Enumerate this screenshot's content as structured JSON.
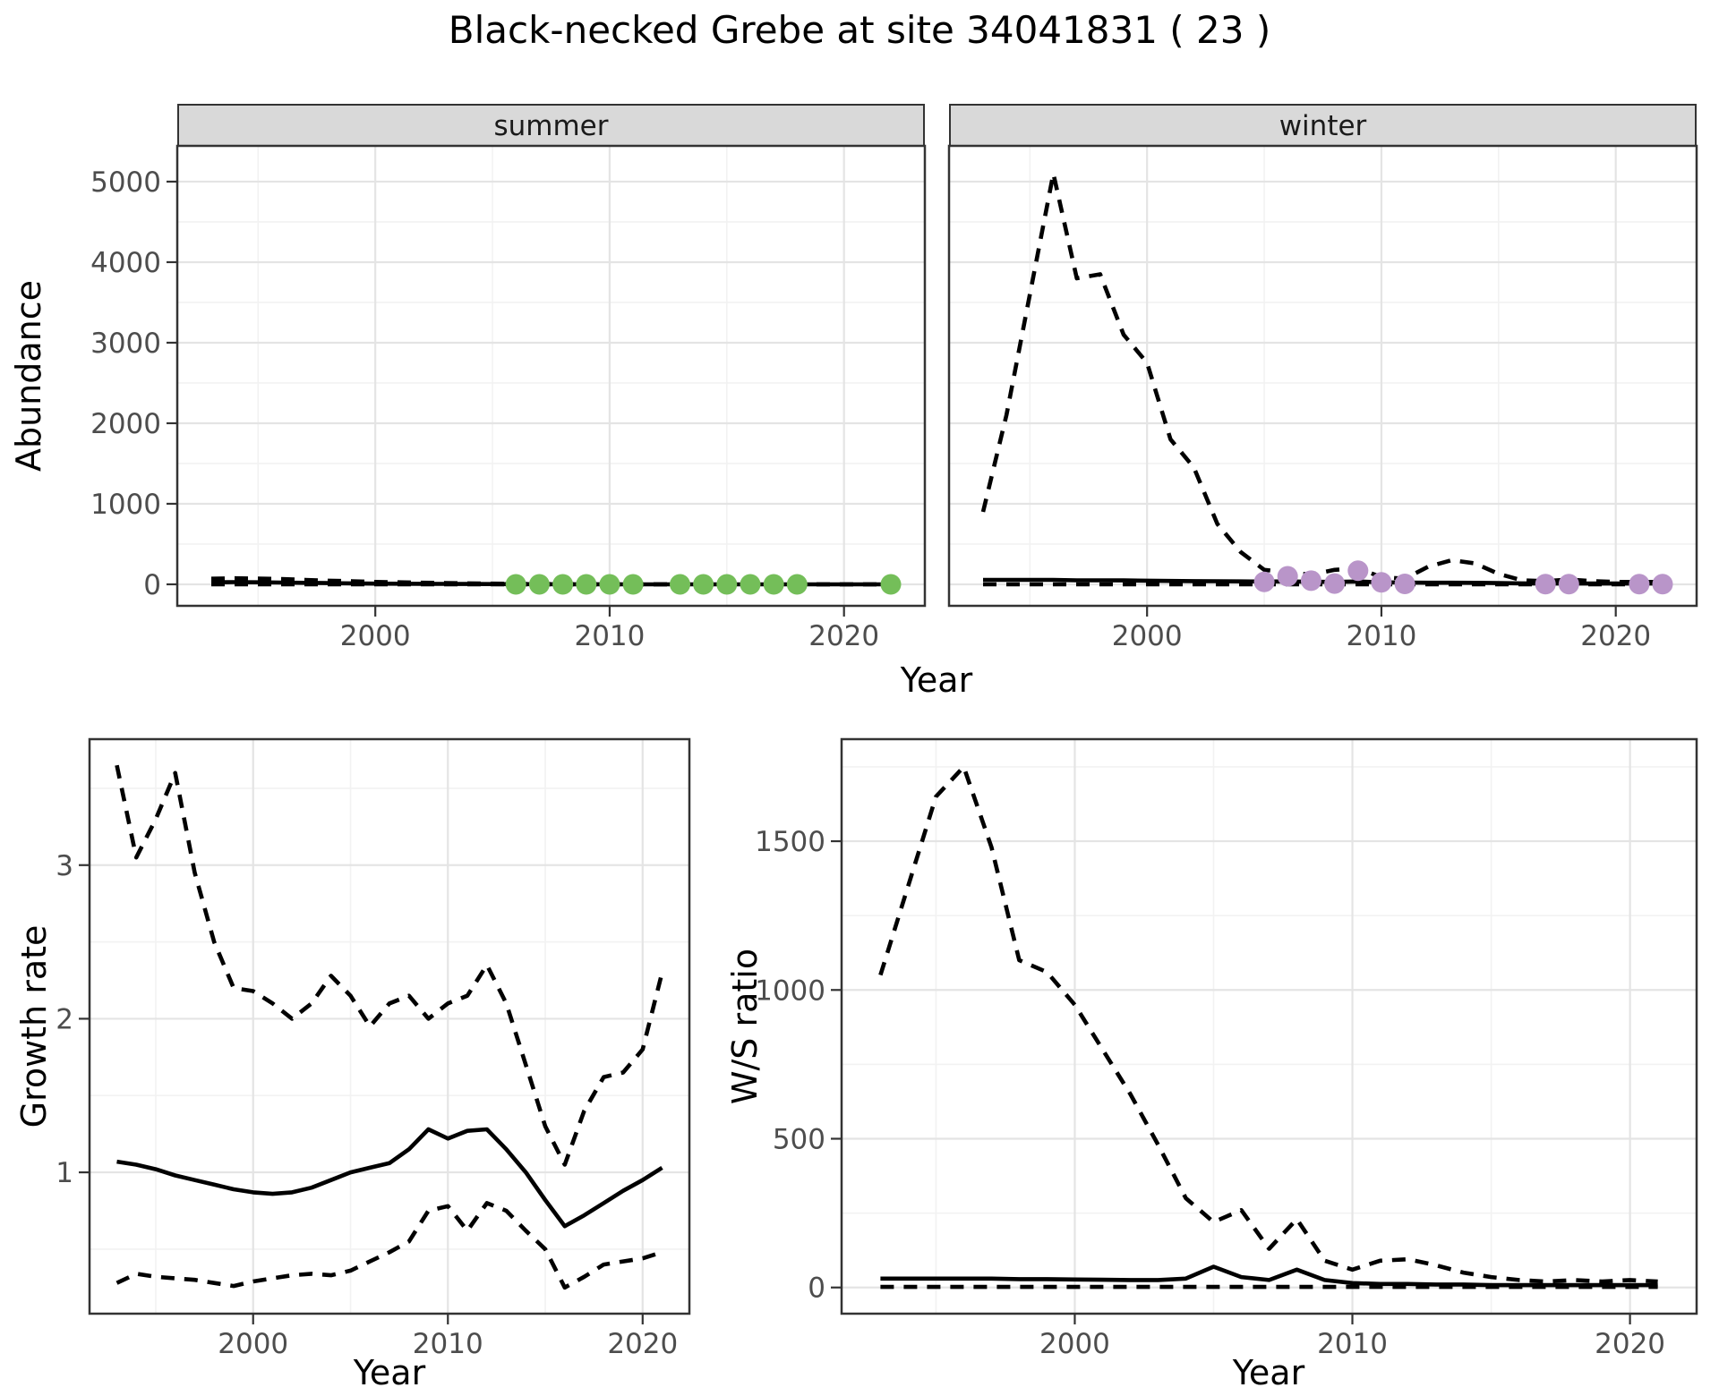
{
  "title": "Black-necked Grebe at site 34041831 ( 23 )",
  "labels": {
    "abundance": "Abundance",
    "year": "Year",
    "growth_rate": "Growth rate",
    "ws_ratio": "W/S ratio",
    "facet_summer": "summer",
    "facet_winter": "winter"
  },
  "colors": {
    "summer_points": "#74BE59",
    "winter_points": "#B995C9",
    "line": "#000000",
    "strip_bg": "#D9D9D9",
    "panel_border": "#333333",
    "grid_major": "#E4E4E4",
    "grid_minor": "#F2F2F2",
    "tick_text": "#4D4D4D"
  },
  "chart_data": [
    {
      "id": "abundance_summer",
      "type": "line",
      "facet": "summer",
      "title": "Black-necked Grebe at site 34041831 ( 23 )",
      "xlabel": "Year",
      "ylabel": "Abundance",
      "xlim": [
        1991.55,
        2023.45
      ],
      "ylim": [
        -267,
        5444
      ],
      "xticks": [
        2000,
        2010,
        2020
      ],
      "yticks": [
        0,
        1000,
        2000,
        3000,
        4000,
        5000
      ],
      "xminor": [
        1995,
        2005,
        2015
      ],
      "yminor": [
        500,
        1500,
        2500,
        3500,
        4500
      ],
      "show_y_labels": true,
      "x": [
        1993,
        1994,
        1995,
        1996,
        1997,
        1998,
        1999,
        2000,
        2001,
        2002,
        2003,
        2004,
        2005,
        2006,
        2007,
        2008,
        2009,
        2010,
        2011,
        2012,
        2013,
        2014,
        2015,
        2016,
        2017,
        2018,
        2019,
        2020,
        2021,
        2022
      ],
      "series": [
        {
          "name": "upper_ci",
          "style": "dashed",
          "values": [
            70,
            75,
            72,
            65,
            55,
            45,
            38,
            30,
            25,
            20,
            16,
            12,
            9,
            6,
            4,
            3,
            2,
            1,
            1,
            1,
            0,
            0,
            0,
            0,
            0,
            0,
            0,
            0,
            0,
            0
          ]
        },
        {
          "name": "fit",
          "style": "solid",
          "values": [
            25,
            27,
            25,
            22,
            18,
            15,
            12,
            9,
            7,
            6,
            5,
            4,
            3,
            2,
            2,
            1,
            1,
            1,
            0,
            0,
            0,
            0,
            0,
            0,
            0,
            0,
            0,
            0,
            0,
            0
          ]
        },
        {
          "name": "lower_ci",
          "style": "dashed",
          "values": [
            0,
            0,
            0,
            0,
            0,
            0,
            0,
            0,
            0,
            0,
            0,
            0,
            0,
            0,
            0,
            0,
            0,
            0,
            0,
            0,
            0,
            0,
            0,
            0,
            0,
            0,
            0,
            0,
            0,
            0
          ]
        }
      ],
      "points": {
        "name": "observed_counts",
        "color": "#74BE59",
        "x": [
          2006,
          2007,
          2008,
          2009,
          2010,
          2011,
          2013,
          2014,
          2015,
          2016,
          2017,
          2018,
          2022
        ],
        "y": [
          0,
          0,
          0,
          0,
          0,
          0,
          0,
          0,
          0,
          0,
          0,
          0,
          0
        ]
      }
    },
    {
      "id": "abundance_winter",
      "type": "line",
      "facet": "winter",
      "xlabel": "Year",
      "ylabel": "Abundance",
      "xlim": [
        1991.55,
        2023.45
      ],
      "ylim": [
        -267,
        5444
      ],
      "xticks": [
        2000,
        2010,
        2020
      ],
      "yticks": [
        0,
        1000,
        2000,
        3000,
        4000,
        5000
      ],
      "xminor": [
        1995,
        2005,
        2015
      ],
      "yminor": [
        500,
        1500,
        2500,
        3500,
        4500
      ],
      "show_y_labels": false,
      "x": [
        1993,
        1994,
        1995,
        1996,
        1997,
        1998,
        1999,
        2000,
        2001,
        2002,
        2003,
        2004,
        2005,
        2006,
        2007,
        2008,
        2009,
        2010,
        2011,
        2012,
        2013,
        2014,
        2015,
        2016,
        2017,
        2018,
        2019,
        2020,
        2021,
        2022
      ],
      "series": [
        {
          "name": "upper_ci",
          "style": "dashed",
          "values": [
            900,
            2100,
            3600,
            5100,
            3800,
            3850,
            3100,
            2750,
            1800,
            1450,
            750,
            400,
            180,
            150,
            120,
            180,
            200,
            90,
            70,
            220,
            300,
            260,
            130,
            50,
            40,
            60,
            40,
            30,
            30,
            30
          ]
        },
        {
          "name": "fit",
          "style": "solid",
          "values": [
            55,
            55,
            55,
            55,
            50,
            50,
            48,
            45,
            42,
            40,
            38,
            36,
            35,
            35,
            32,
            30,
            35,
            25,
            22,
            20,
            20,
            18,
            15,
            12,
            10,
            10,
            10,
            10,
            10,
            10
          ]
        },
        {
          "name": "lower_ci",
          "style": "dashed",
          "values": [
            0,
            0,
            0,
            0,
            0,
            0,
            0,
            0,
            0,
            0,
            0,
            0,
            0,
            0,
            0,
            0,
            0,
            0,
            0,
            0,
            0,
            0,
            0,
            0,
            0,
            0,
            0,
            0,
            0,
            0
          ]
        }
      ],
      "points": {
        "name": "observed_counts",
        "color": "#B995C9",
        "x": [
          2005,
          2006,
          2007,
          2008,
          2009,
          2010,
          2011,
          2017,
          2018,
          2021,
          2022
        ],
        "y": [
          30,
          100,
          45,
          10,
          170,
          25,
          5,
          2,
          2,
          2,
          2
        ]
      }
    },
    {
      "id": "growth_rate",
      "type": "line",
      "xlabel": "Year",
      "ylabel": "Growth rate",
      "xlim": [
        1991.6,
        2022.4
      ],
      "ylim": [
        0.08,
        3.82
      ],
      "xticks": [
        2000,
        2010,
        2020
      ],
      "yticks": [
        1,
        2,
        3
      ],
      "xminor": [
        1995,
        2005,
        2015
      ],
      "yminor": [
        0.5,
        1.5,
        2.5,
        3.5
      ],
      "show_y_labels": true,
      "x": [
        1993,
        1994,
        1995,
        1996,
        1997,
        1998,
        1999,
        2000,
        2001,
        2002,
        2003,
        2004,
        2005,
        2006,
        2007,
        2008,
        2009,
        2010,
        2011,
        2012,
        2013,
        2014,
        2015,
        2016,
        2017,
        2018,
        2019,
        2020,
        2021
      ],
      "series": [
        {
          "name": "upper_ci",
          "style": "dashed",
          "values": [
            3.65,
            3.05,
            3.3,
            3.6,
            2.95,
            2.5,
            2.2,
            2.18,
            2.1,
            2.0,
            2.1,
            2.28,
            2.15,
            1.95,
            2.1,
            2.15,
            2.0,
            2.1,
            2.15,
            2.35,
            2.1,
            1.7,
            1.3,
            1.05,
            1.4,
            1.62,
            1.65,
            1.8,
            2.3
          ]
        },
        {
          "name": "fit",
          "style": "solid",
          "values": [
            1.07,
            1.05,
            1.02,
            0.98,
            0.95,
            0.92,
            0.89,
            0.87,
            0.86,
            0.87,
            0.9,
            0.95,
            1.0,
            1.03,
            1.06,
            1.15,
            1.28,
            1.22,
            1.27,
            1.28,
            1.15,
            1.0,
            0.82,
            0.65,
            0.72,
            0.8,
            0.88,
            0.95,
            1.03
          ]
        },
        {
          "name": "lower_ci",
          "style": "dashed",
          "values": [
            0.28,
            0.34,
            0.32,
            0.31,
            0.3,
            0.28,
            0.26,
            0.29,
            0.31,
            0.33,
            0.34,
            0.33,
            0.36,
            0.42,
            0.48,
            0.55,
            0.75,
            0.78,
            0.62,
            0.8,
            0.75,
            0.62,
            0.5,
            0.25,
            0.32,
            0.4,
            0.42,
            0.44,
            0.48
          ]
        }
      ]
    },
    {
      "id": "ws_ratio",
      "type": "line",
      "xlabel": "Year",
      "ylabel": "W/S ratio",
      "xlim": [
        1991.6,
        2022.4
      ],
      "ylim": [
        -88,
        1843
      ],
      "xticks": [
        2000,
        2010,
        2020
      ],
      "yticks": [
        0,
        500,
        1000,
        1500
      ],
      "xminor": [
        1995,
        2005,
        2015
      ],
      "yminor": [
        250,
        750,
        1250,
        1750
      ],
      "show_y_labels": true,
      "x": [
        1993,
        1994,
        1995,
        1996,
        1997,
        1998,
        1999,
        2000,
        2001,
        2002,
        2003,
        2004,
        2005,
        2006,
        2007,
        2008,
        2009,
        2010,
        2011,
        2012,
        2013,
        2014,
        2015,
        2016,
        2017,
        2018,
        2019,
        2020,
        2021
      ],
      "series": [
        {
          "name": "upper_ci",
          "style": "dashed",
          "values": [
            1050,
            1350,
            1650,
            1750,
            1480,
            1100,
            1060,
            950,
            800,
            650,
            480,
            300,
            220,
            260,
            130,
            230,
            90,
            60,
            90,
            95,
            75,
            50,
            35,
            25,
            20,
            25,
            20,
            25,
            20
          ]
        },
        {
          "name": "fit",
          "style": "solid",
          "values": [
            30,
            30,
            30,
            30,
            30,
            28,
            28,
            27,
            26,
            25,
            25,
            30,
            70,
            35,
            25,
            60,
            25,
            15,
            12,
            12,
            10,
            10,
            8,
            8,
            8,
            8,
            8,
            8,
            8
          ]
        },
        {
          "name": "lower_ci",
          "style": "dashed",
          "values": [
            2,
            2,
            2,
            2,
            2,
            2,
            2,
            2,
            2,
            2,
            2,
            2,
            2,
            2,
            2,
            2,
            2,
            2,
            2,
            2,
            2,
            2,
            2,
            2,
            2,
            2,
            2,
            2,
            2
          ]
        }
      ]
    }
  ]
}
